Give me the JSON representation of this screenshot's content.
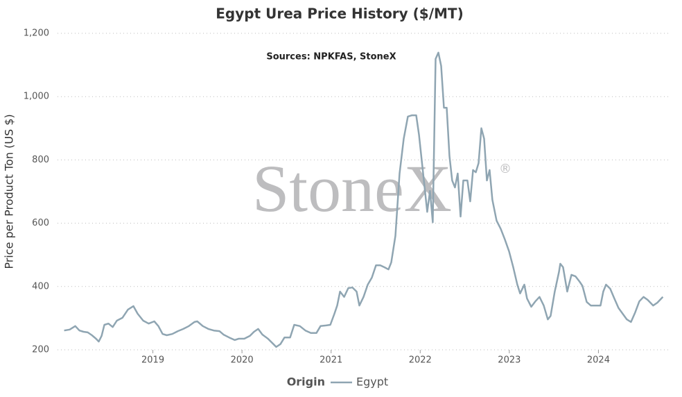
{
  "chart_data": {
    "type": "line",
    "title": "Egypt Urea Price History ($/MT)",
    "subtitle": "Sources: NPKFAS, StoneX",
    "watermark": "StoneX",
    "watermark_mark": "®",
    "y_label": "Price per Product Ton (US $)",
    "legend_title": "Origin",
    "legend_position": "bottom",
    "grid": true,
    "xlim": [
      2017.93,
      2024.79
    ],
    "xticks": [
      2019,
      2020,
      2021,
      2022,
      2023,
      2024
    ],
    "ylim": [
      200,
      1200
    ],
    "yticks": [
      200,
      400,
      600,
      800,
      {
        "value": 1000,
        "label": "1,000"
      },
      {
        "value": 1200,
        "label": "1,200"
      }
    ],
    "x": [
      2018.005,
      2018.067,
      2018.129,
      2018.176,
      2018.222,
      2018.269,
      2018.316,
      2018.362,
      2018.393,
      2018.425,
      2018.456,
      2018.502,
      2018.549,
      2018.596,
      2018.658,
      2018.72,
      2018.782,
      2018.829,
      2018.891,
      2018.953,
      2019.016,
      2019.062,
      2019.109,
      2019.156,
      2019.218,
      2019.28,
      2019.342,
      2019.404,
      2019.467,
      2019.498,
      2019.56,
      2019.622,
      2019.684,
      2019.747,
      2019.793,
      2019.855,
      2019.918,
      2019.964,
      2020.026,
      2020.089,
      2020.135,
      2020.182,
      2020.229,
      2020.291,
      2020.353,
      2020.384,
      2020.431,
      2020.477,
      2020.54,
      2020.586,
      2020.649,
      2020.711,
      2020.773,
      2020.835,
      2020.882,
      2020.944,
      2020.991,
      2021.037,
      2021.068,
      2021.1,
      2021.146,
      2021.193,
      2021.239,
      2021.286,
      2021.317,
      2021.364,
      2021.411,
      2021.457,
      2021.504,
      2021.551,
      2021.597,
      2021.644,
      2021.675,
      2021.722,
      2021.768,
      2021.815,
      2021.862,
      2021.908,
      2021.955,
      2021.986,
      2022.033,
      2022.079,
      2022.11,
      2022.141,
      2022.173,
      2022.204,
      2022.235,
      2022.266,
      2022.297,
      2022.328,
      2022.359,
      2022.39,
      2022.421,
      2022.453,
      2022.484,
      2022.53,
      2022.561,
      2022.593,
      2022.624,
      2022.655,
      2022.686,
      2022.717,
      2022.748,
      2022.779,
      2022.81,
      2022.857,
      2022.904,
      2022.95,
      2022.997,
      2023.044,
      2023.09,
      2023.121,
      2023.168,
      2023.199,
      2023.246,
      2023.292,
      2023.339,
      2023.386,
      2023.432,
      2023.463,
      2023.51,
      2023.557,
      2023.572,
      2023.603,
      2023.65,
      2023.697,
      2023.743,
      2023.79,
      2023.821,
      2023.868,
      2023.914,
      2023.961,
      2024.023,
      2024.054,
      2024.085,
      2024.132,
      2024.179,
      2024.225,
      2024.272,
      2024.319,
      2024.365,
      2024.412,
      2024.459,
      2024.506,
      2024.552,
      2024.614,
      2024.661,
      2024.723
    ],
    "series": [
      {
        "name": "Egypt",
        "color": "#8fa5b2",
        "values": [
          261,
          264,
          275,
          261,
          257,
          255,
          246,
          235,
          226,
          244,
          279,
          283,
          272,
          292,
          301,
          327,
          338,
          314,
          292,
          283,
          290,
          275,
          250,
          246,
          250,
          259,
          266,
          275,
          288,
          290,
          275,
          266,
          261,
          259,
          248,
          239,
          231,
          235,
          235,
          244,
          257,
          266,
          248,
          235,
          218,
          209,
          218,
          239,
          239,
          279,
          275,
          261,
          253,
          253,
          275,
          277,
          279,
          314,
          340,
          384,
          367,
          395,
          397,
          384,
          340,
          367,
          406,
          428,
          467,
          467,
          461,
          454,
          476,
          560,
          757,
          867,
          937,
          941,
          941,
          880,
          757,
          636,
          702,
          603,
          1119,
          1139,
          1097,
          965,
          965,
          812,
          735,
          713,
          757,
          621,
          735,
          735,
          669,
          768,
          761,
          790,
          900,
          867,
          735,
          768,
          674,
          608,
          582,
          549,
          511,
          461,
          406,
          378,
          406,
          362,
          336,
          353,
          367,
          340,
          296,
          307,
          384,
          446,
          472,
          461,
          384,
          437,
          432,
          415,
          402,
          351,
          340,
          340,
          340,
          384,
          406,
          393,
          362,
          332,
          314,
          296,
          288,
          318,
          353,
          367,
          358,
          340,
          349,
          367
        ]
      }
    ]
  }
}
